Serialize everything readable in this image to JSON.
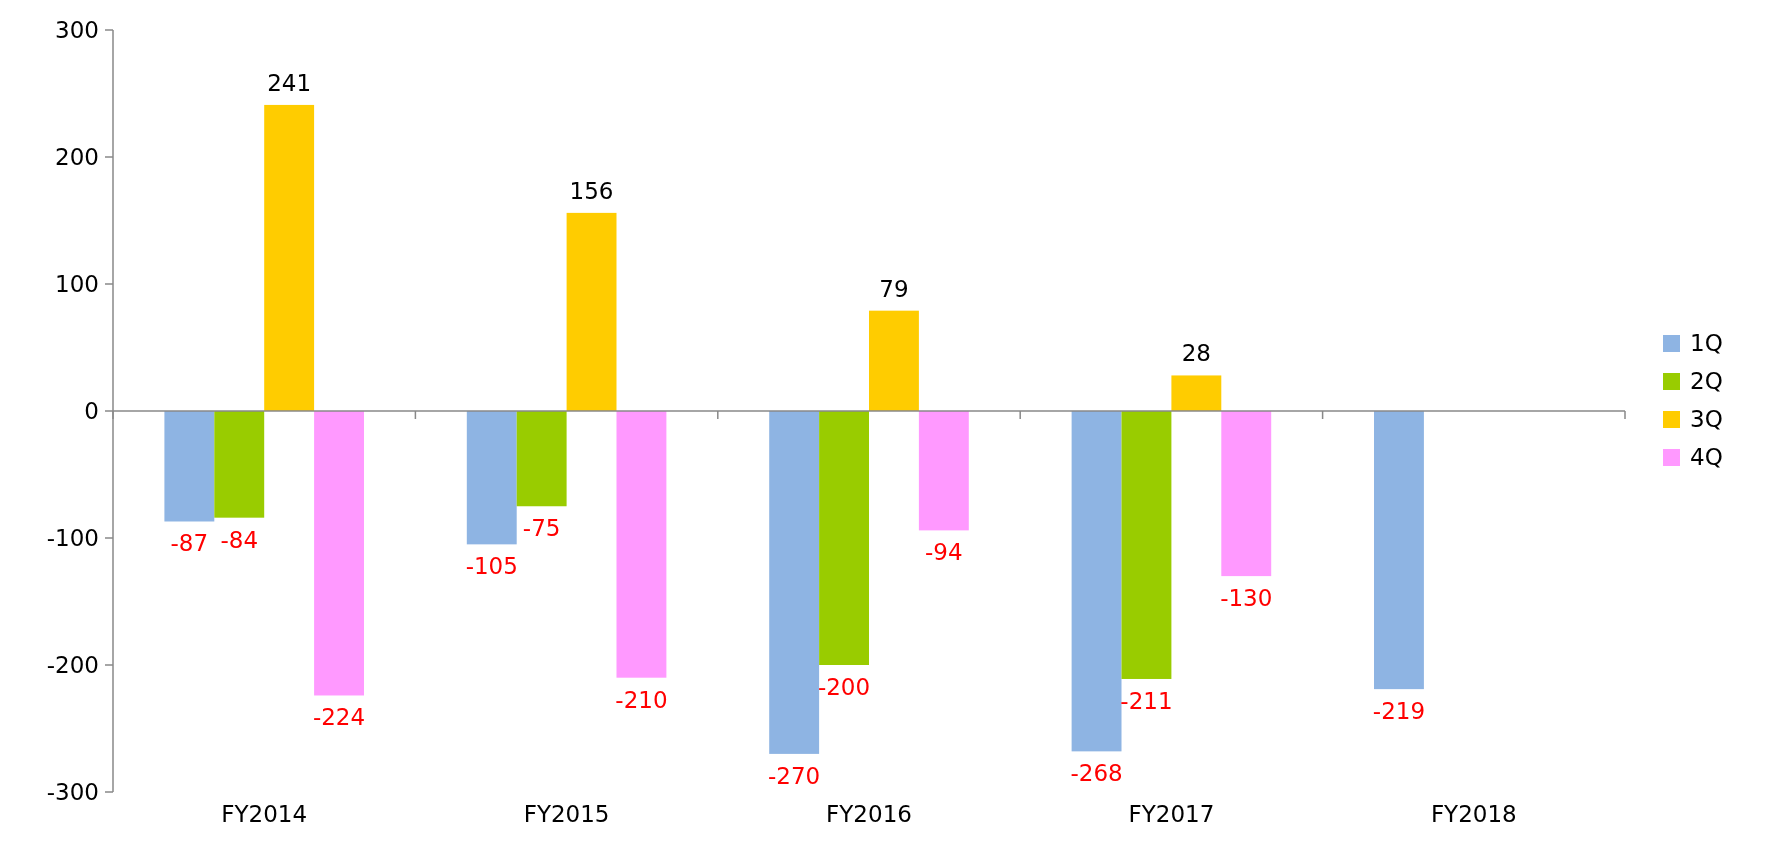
{
  "chart_data": {
    "type": "bar",
    "categories": [
      "FY2014",
      "FY2015",
      "FY2016",
      "FY2017",
      "FY2018"
    ],
    "series": [
      {
        "name": "1Q",
        "color": "#8eb4e3",
        "values": [
          -87,
          -105,
          -270,
          -268,
          -219
        ]
      },
      {
        "name": "2Q",
        "color": "#99cc00",
        "values": [
          -84,
          -75,
          -200,
          -211,
          null
        ]
      },
      {
        "name": "3Q",
        "color": "#ffcc00",
        "values": [
          241,
          156,
          79,
          28,
          null
        ]
      },
      {
        "name": "4Q",
        "color": "#ff99ff",
        "values": [
          -224,
          -210,
          -94,
          -130,
          null
        ]
      }
    ],
    "ylim": [
      -300,
      300
    ],
    "yticks": [
      -300,
      -200,
      -100,
      0,
      100,
      200,
      300
    ],
    "data_labels": true,
    "legend": "right"
  }
}
